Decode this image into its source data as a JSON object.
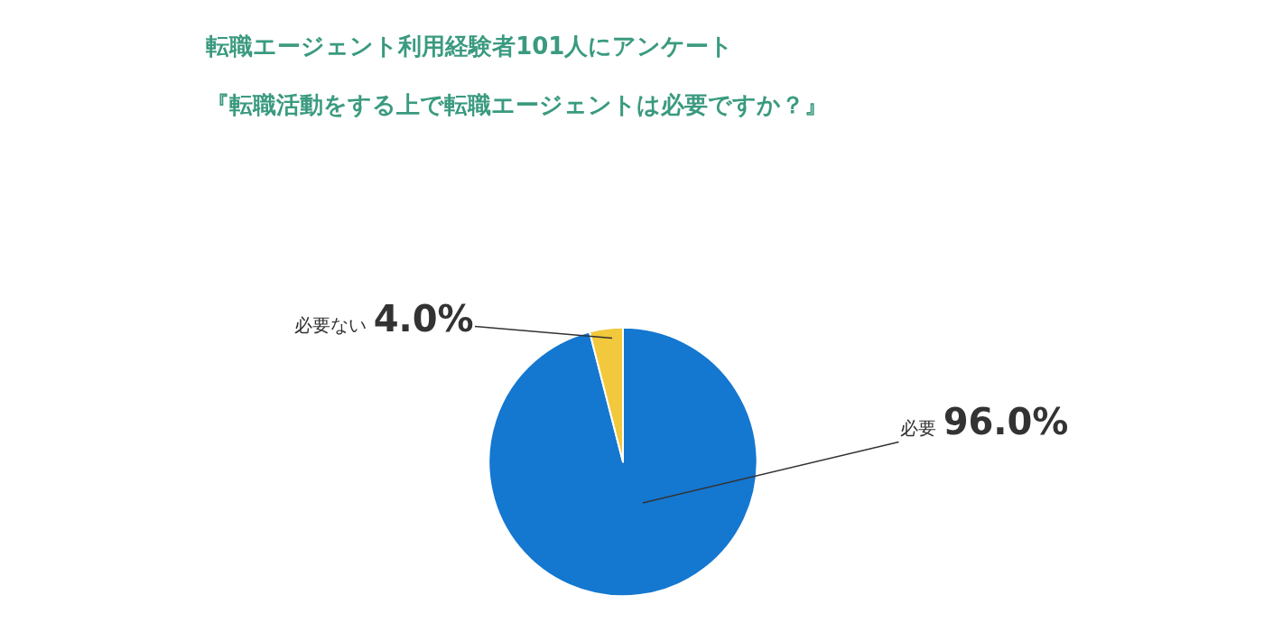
{
  "chart_data": {
    "type": "pie",
    "title": "転職エージェント利用経験者101人にアンケート",
    "subtitle": "『転職活動をする上で転職エージェントは必要ですか？』",
    "categories": [
      "必要",
      "必要ない"
    ],
    "values": [
      96.0,
      4.0
    ],
    "value_labels": [
      "96.0%",
      "4.0%"
    ],
    "colors": [
      "#1477d0",
      "#f2c83c"
    ],
    "legend": false
  }
}
